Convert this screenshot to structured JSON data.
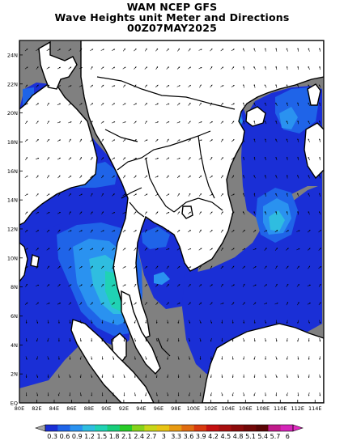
{
  "title": {
    "line1": "WAM NCEP GFS",
    "line2": "Wave Heights unit Meter and Directions",
    "line3": "00Z07MAY2025"
  },
  "map": {
    "lon_range": [
      80,
      115
    ],
    "lat_range": [
      0,
      25
    ],
    "lon_ticks": [
      "80E",
      "82E",
      "84E",
      "86E",
      "88E",
      "90E",
      "92E",
      "94E",
      "96E",
      "98E",
      "100E",
      "102E",
      "104E",
      "106E",
      "108E",
      "110E",
      "112E",
      "114E"
    ],
    "lat_ticks": [
      "EQ",
      "2N",
      "4N",
      "6N",
      "8N",
      "10N",
      "12N",
      "14N",
      "16N",
      "18N",
      "20N",
      "22N",
      "24N"
    ],
    "land_color": "#ffffff",
    "nodata_color": "#808080",
    "coast_color": "#000000"
  },
  "colorbar": {
    "labels": [
      "0.3",
      "0.6",
      "0.9",
      "1.2",
      "1.5",
      "1.8",
      "2.1",
      "2.4",
      "2.7",
      "3",
      "3.3",
      "3.6",
      "3.9",
      "4.2",
      "4.5",
      "4.8",
      "5.1",
      "5.4",
      "5.7",
      "6"
    ],
    "colors": [
      "#1a2fd6",
      "#1f64e8",
      "#2a92f0",
      "#2fbde0",
      "#20d2b4",
      "#18cd7a",
      "#28cc28",
      "#86d31a",
      "#c8d618",
      "#e8c414",
      "#e89a12",
      "#e06c10",
      "#d83a0e",
      "#c41010",
      "#a80f0f",
      "#8c0b0b",
      "#720808",
      "#5a0505",
      "#c01a8a",
      "#d424b8"
    ]
  }
}
